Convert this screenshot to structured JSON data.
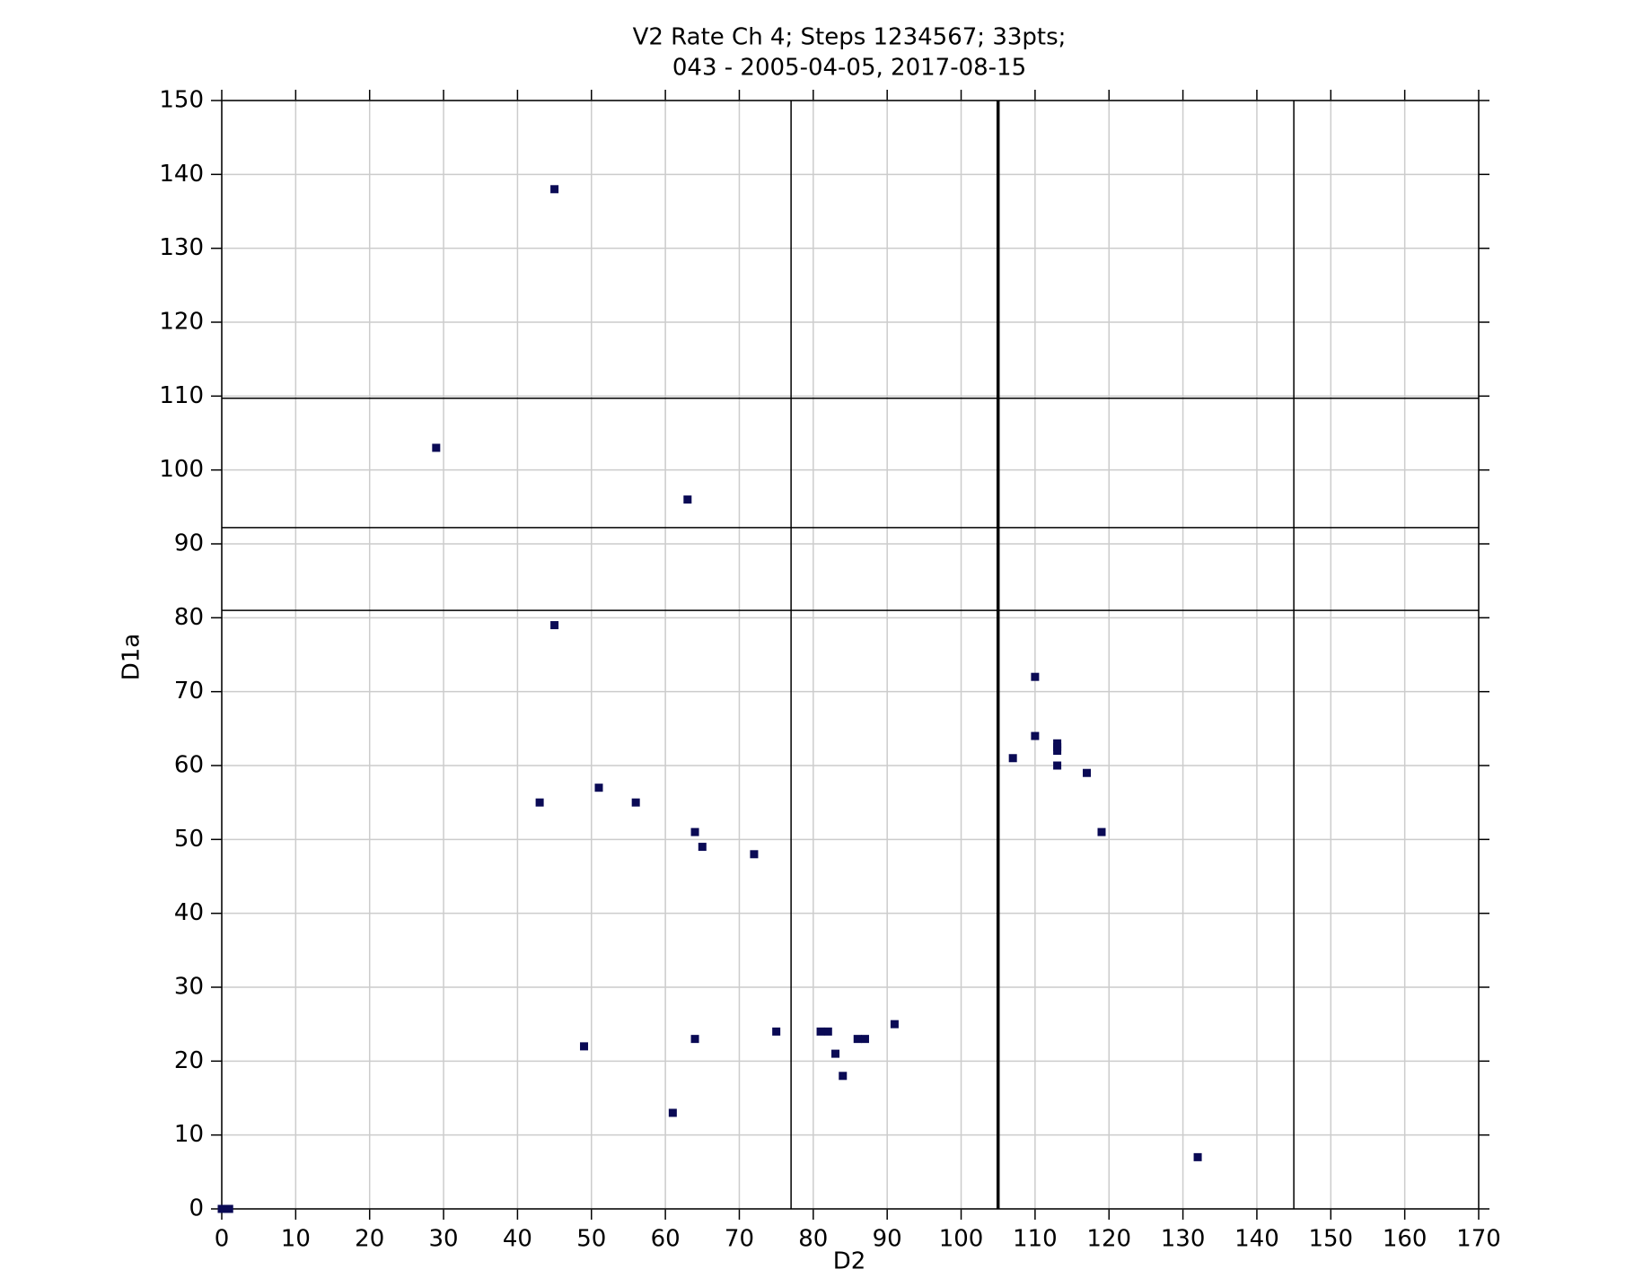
{
  "chart_data": {
    "type": "scatter",
    "title": [
      "V2 Rate Ch 4; Steps 1234567; 33pts;",
      "043 - 2005-04-05, 2017-08-15"
    ],
    "x_label": "D2",
    "y_label": "D1a",
    "series": [
      {
        "name": "points",
        "color": "#0a0a55",
        "x": [
          45,
          29,
          63,
          45,
          110,
          110,
          107,
          113,
          113,
          113,
          117,
          119,
          43,
          51,
          56,
          64,
          65,
          72,
          49,
          64,
          61,
          75,
          81,
          82,
          83,
          84,
          86,
          87,
          91,
          132,
          0,
          1,
          113
        ],
        "values": [
          138,
          103,
          96,
          79,
          72,
          64,
          61,
          63,
          62,
          60,
          59,
          51,
          55,
          57,
          55,
          51,
          49,
          48,
          22,
          23,
          13,
          24,
          24,
          24,
          21,
          18,
          23,
          23,
          25,
          7,
          0,
          0,
          62.5
        ]
      }
    ],
    "vlines": [
      {
        "value": 77,
        "bold": false
      },
      {
        "value": 105,
        "bold": true
      },
      {
        "value": 145,
        "bold": false
      }
    ],
    "hlines": [
      81,
      92.2,
      109.7
    ],
    "xlim": [
      0,
      170
    ],
    "xticks": [
      0,
      10,
      20,
      30,
      40,
      50,
      60,
      70,
      80,
      90,
      100,
      110,
      120,
      130,
      140,
      150,
      160,
      170
    ],
    "ylim": [
      0,
      150
    ],
    "yticks": [
      0,
      10,
      20,
      30,
      40,
      50,
      60,
      70,
      80,
      90,
      100,
      110,
      120,
      130,
      140,
      150
    ],
    "grid": true
  }
}
